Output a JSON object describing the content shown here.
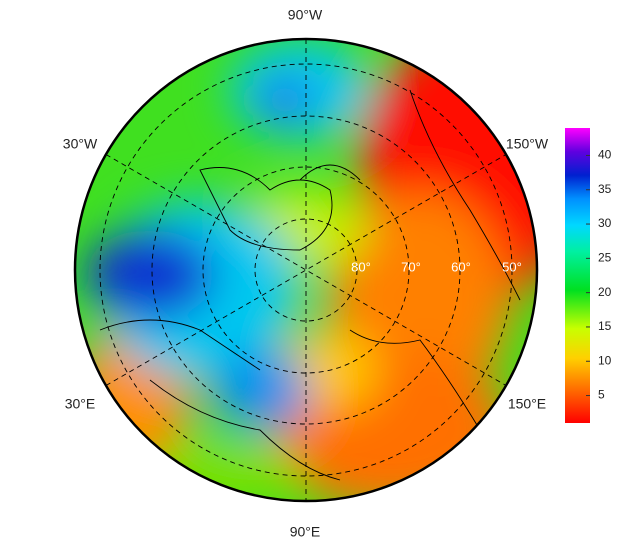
{
  "map": {
    "longitude_labels": [
      "90°W",
      "30°W",
      "150°W",
      "30°E",
      "150°E",
      "90°E"
    ],
    "latitude_labels": [
      "80°",
      "70°",
      "60°",
      "50°"
    ]
  },
  "colorbar": {
    "lim": [
      1,
      44
    ],
    "ticks": [
      5,
      10,
      15,
      20,
      25,
      30,
      35,
      40
    ]
  }
}
